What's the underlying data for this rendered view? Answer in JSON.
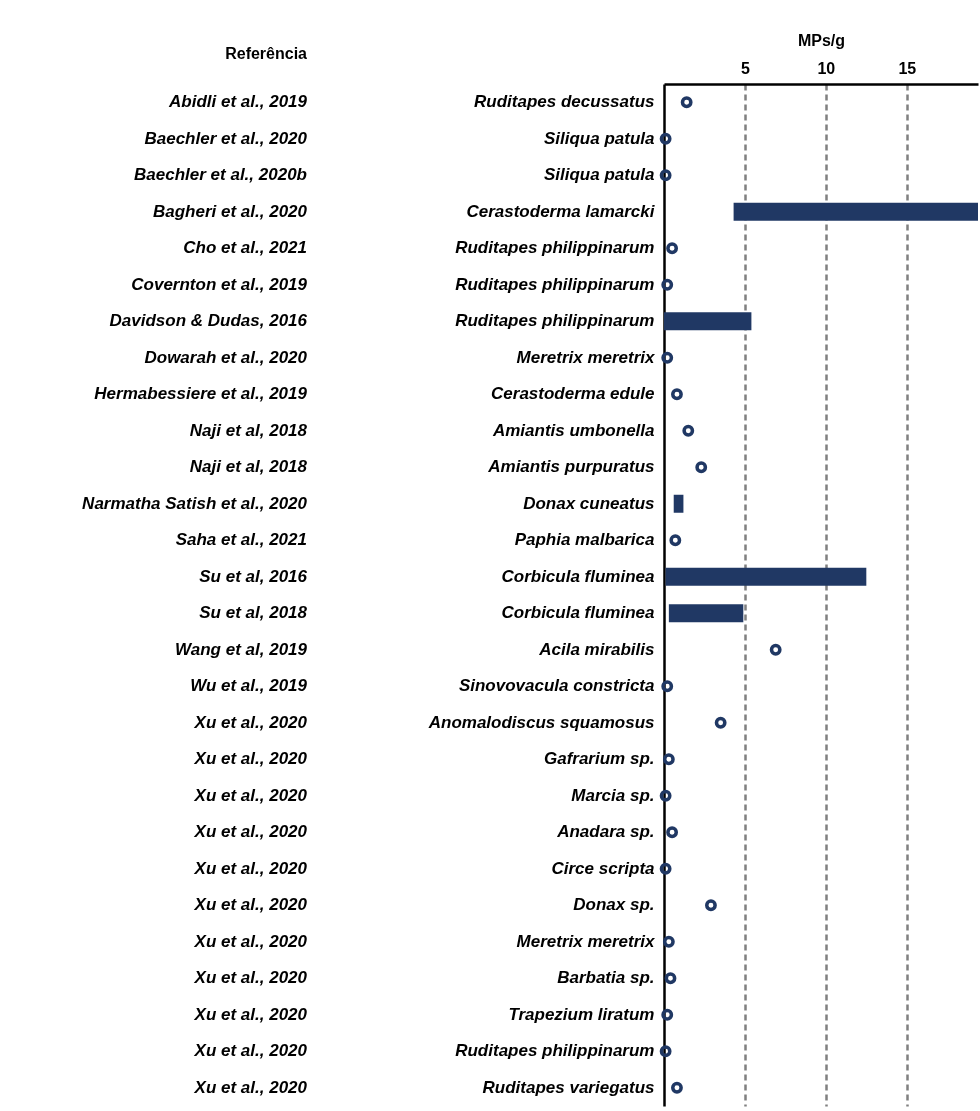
{
  "chart_data": {
    "type": "bar",
    "orientation": "horizontal",
    "xlabel": "MPs/g",
    "annotations": [
      "Referência"
    ],
    "categories": [
      "Ruditapes decussatus",
      "Siliqua patula",
      "Siliqua patula",
      "Cerastoderma lamarcki",
      "Ruditapes philippinarum",
      "Ruditapes philippinarum",
      "Ruditapes philippinarum",
      "Meretrix meretrix",
      "Cerastoderma edule",
      "Amiantis umbonella",
      "Amiantis purpuratus",
      "Donax cuneatus",
      "Paphia malbarica",
      "Corbicula fluminea",
      "Corbicula fluminea",
      "Acila mirabilis",
      "Sinovovacula constricta",
      "Anomalodiscus squamosus",
      "Gafrarium sp.",
      "Marcia sp.",
      "Anadara sp.",
      "Circe scripta",
      "Donax sp.",
      "Meretrix meretrix",
      "Barbatia sp.",
      "Trapezium liratum",
      "Ruditapes philippinarum",
      "Ruditapes variegatus"
    ],
    "y2_categories": [
      "Abidli et al., 2019",
      "Baechler et al., 2020",
      "Baechler et al., 2020b",
      "Bagheri et al., 2020",
      "Cho et al., 2021",
      "Covernton et al., 2019",
      "Davidson & Dudas, 2016",
      "Dowarah et al., 2020",
      "Hermabessiere et al., 2019",
      "Naji et al, 2018",
      "Naji et al, 2018",
      "Narmatha Satish et al., 2020",
      "Saha et al., 2021",
      "Su et al, 2016",
      "Su et al, 2018",
      "Wang et al, 2019",
      "Wu et al., 2019",
      "Xu et al., 2020",
      "Xu et al., 2020",
      "Xu et al., 2020",
      "Xu et al., 2020",
      "Xu et al., 2020",
      "Xu et al., 2020",
      "Xu et al., 2020",
      "Xu et al., 2020",
      "Xu et al., 2020",
      "Xu et al., 2020",
      "Xu et al., 2020"
    ],
    "series": [
      {
        "color": "#203864",
        "base": [
          null,
          null,
          null,
          4.3,
          null,
          null,
          0,
          null,
          null,
          null,
          null,
          0.6,
          null,
          0.1,
          0.3,
          null,
          null,
          null,
          null,
          null,
          null,
          null,
          null,
          null,
          null,
          null,
          null,
          null
        ],
        "values": [
          null,
          null,
          null,
          15.1,
          null,
          null,
          5.4,
          null,
          null,
          null,
          null,
          0.6,
          null,
          12.4,
          4.6,
          null,
          null,
          null,
          null,
          null,
          null,
          null,
          null,
          null,
          null,
          null,
          null,
          null
        ]
      },
      {
        "type": "scatter",
        "color": "#203864",
        "marker": "circle",
        "values": [
          1.4,
          0.1,
          0.1,
          null,
          0.5,
          0.2,
          null,
          0.2,
          0.8,
          1.5,
          2.3,
          null,
          0.7,
          null,
          null,
          6.9,
          0.2,
          3.5,
          0.3,
          0.1,
          0.5,
          0.1,
          2.9,
          0.3,
          0.4,
          0.2,
          0.1,
          0.8
        ]
      }
    ],
    "xlim": [
      0,
      19.4
    ],
    "xticks": [
      5,
      10,
      15
    ],
    "grid": "x"
  }
}
